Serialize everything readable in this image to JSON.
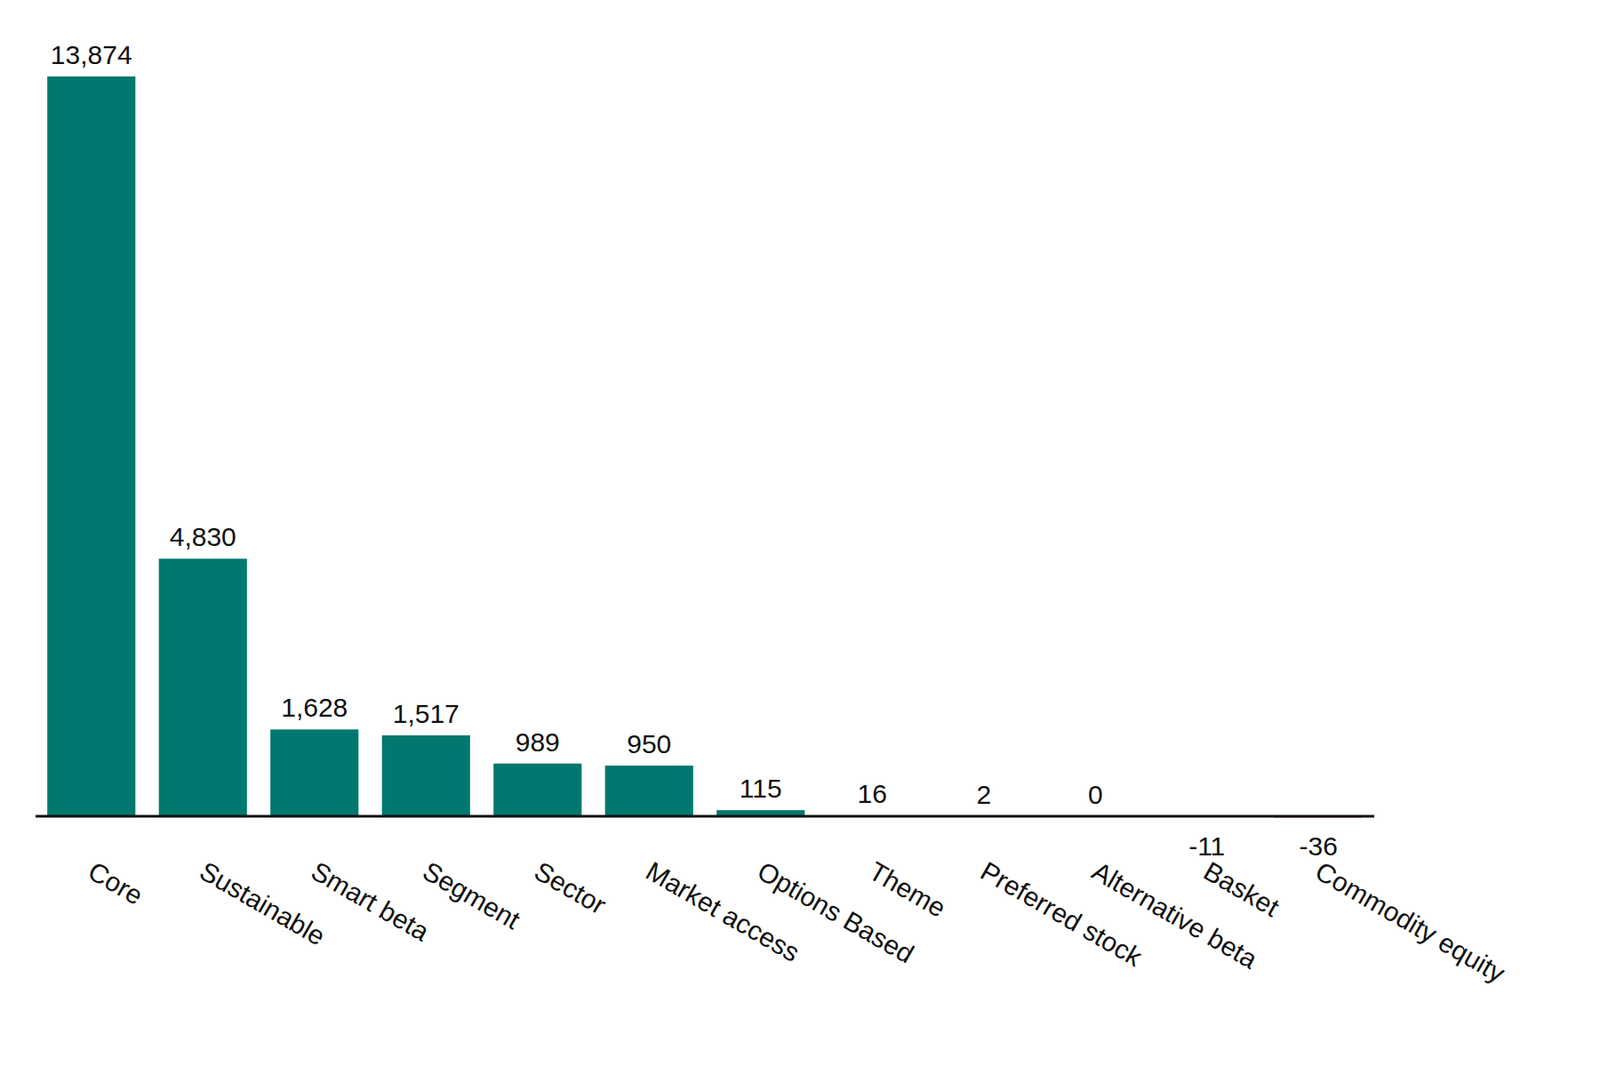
{
  "chart_data": {
    "type": "bar",
    "categories": [
      "Core",
      "Sustainable",
      "Smart beta",
      "Segment",
      "Sector",
      "Market access",
      "Options Based",
      "Theme",
      "Preferred stock",
      "Alternative beta",
      "Basket",
      "Commodity equity"
    ],
    "values": [
      13874,
      4830,
      1628,
      1517,
      989,
      950,
      115,
      16,
      2,
      0,
      -11,
      -36
    ],
    "value_labels": [
      "13,874",
      "4,830",
      "1,628",
      "1,517",
      "989",
      "950",
      "115",
      "16",
      "2",
      "0",
      "-11",
      "-36"
    ],
    "colors": [
      "#00786f",
      "#00786f",
      "#00786f",
      "#00786f",
      "#00786f",
      "#00786f",
      "#00786f",
      "#cfcfcf",
      "#cfcfcf",
      "#cfcfcf",
      "#c9c3d6",
      "#e8a0b4"
    ],
    "ylim": [
      -36,
      13874
    ],
    "data_labels": true,
    "tick_labels": "x"
  }
}
